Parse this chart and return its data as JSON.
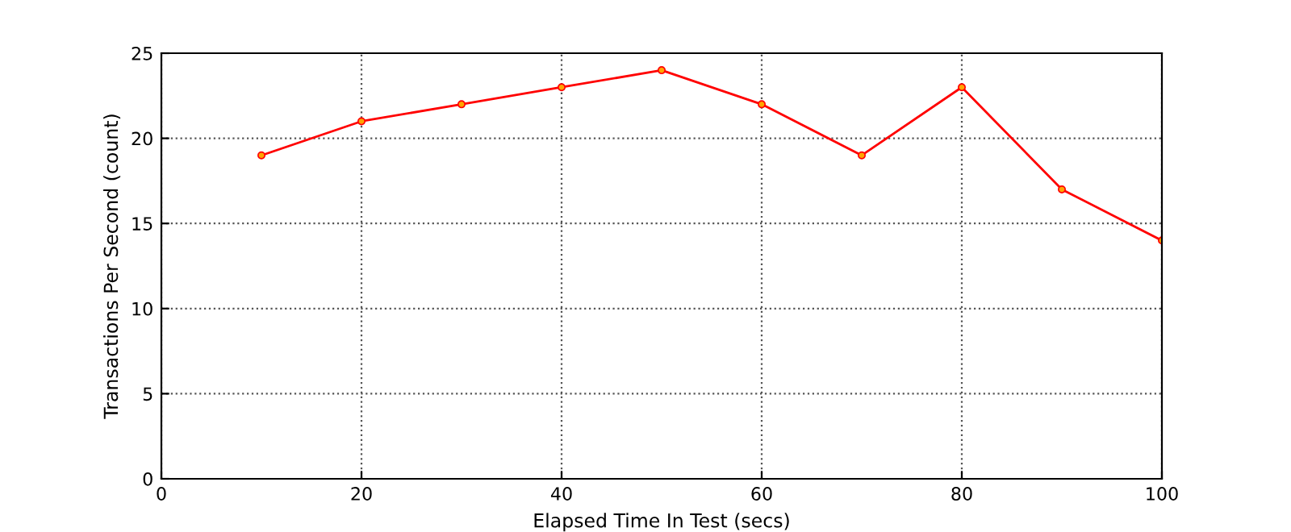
{
  "chart_data": {
    "type": "line",
    "xlabel": "Elapsed Time In Test (secs)",
    "ylabel": "Transactions Per Second (count)",
    "x": [
      10,
      20,
      30,
      40,
      50,
      60,
      70,
      80,
      90,
      100
    ],
    "series": [
      {
        "color": "#ff0000",
        "values": [
          19,
          21,
          22,
          23,
          24,
          22,
          19,
          23,
          17,
          14
        ]
      }
    ],
    "xlim": [
      0,
      100
    ],
    "ylim": [
      0,
      25
    ],
    "xticks": [
      0,
      20,
      40,
      60,
      80,
      100
    ],
    "yticks": [
      0,
      5,
      10,
      15,
      20,
      25
    ],
    "grid": true,
    "marker": "circle",
    "line_style": "solid",
    "legend": false
  }
}
